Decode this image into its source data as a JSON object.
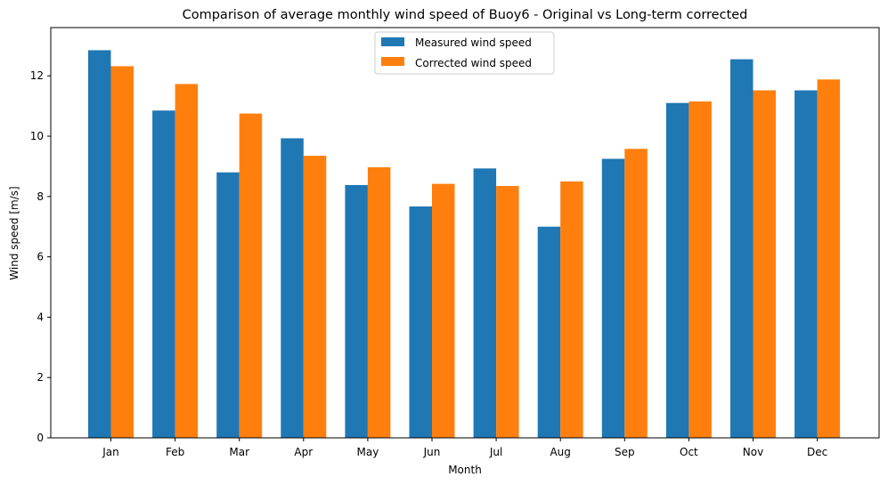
{
  "chart_data": {
    "type": "bar",
    "title": "Comparison of average monthly wind speed of Buoy6 - Original vs Long-term corrected",
    "xlabel": "Month",
    "ylabel": "Wind speed [m/s]",
    "categories": [
      "Jan",
      "Feb",
      "Mar",
      "Apr",
      "May",
      "Jun",
      "Jul",
      "Aug",
      "Sep",
      "Oct",
      "Nov",
      "Dec"
    ],
    "series": [
      {
        "name": "Measured wind speed",
        "color": "#1f77b4",
        "values": [
          12.85,
          10.85,
          8.8,
          9.93,
          8.38,
          7.67,
          8.93,
          7.0,
          9.25,
          11.1,
          12.55,
          11.52
        ]
      },
      {
        "name": "Corrected wind speed",
        "color": "#ff7f0e",
        "values": [
          12.32,
          11.73,
          10.75,
          9.35,
          8.97,
          8.42,
          8.35,
          8.5,
          9.58,
          11.15,
          11.52,
          11.88
        ]
      }
    ],
    "ylim": [
      0,
      13.6
    ],
    "yticks": [
      "0",
      "2",
      "4",
      "6",
      "8",
      "10",
      "12"
    ],
    "legend_position": "top-center",
    "grid": false
  }
}
